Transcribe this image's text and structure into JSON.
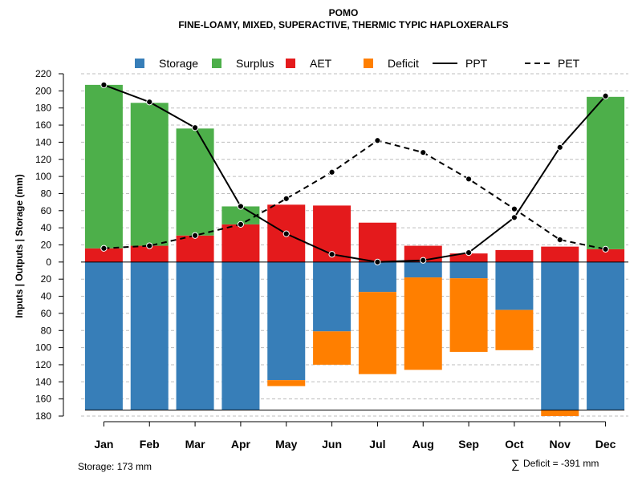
{
  "chart_data": {
    "type": "bar",
    "title": "POMO",
    "subtitle": "FINE-LOAMY, MIXED, SUPERACTIVE, THERMIC TYPIC HAPLOXERALFS",
    "ylabel": "Inputs | Outputs | Storage    (mm)",
    "xlabel": "",
    "ylim": [
      -180,
      220
    ],
    "y_ticks": [
      220,
      200,
      180,
      160,
      140,
      120,
      100,
      80,
      60,
      40,
      20,
      0,
      -20,
      -40,
      -60,
      -80,
      -100,
      -120,
      -140,
      -160,
      -180
    ],
    "y_tick_labels": [
      "220",
      "200",
      "180",
      "160",
      "140",
      "120",
      "100",
      "80",
      "60",
      "40",
      "20",
      "0",
      "20",
      "40",
      "60",
      "80",
      "100",
      "120",
      "140",
      "160",
      "180"
    ],
    "grid": true,
    "categories": [
      "Jan",
      "Feb",
      "Mar",
      "Apr",
      "May",
      "Jun",
      "Jul",
      "Aug",
      "Sep",
      "Oct",
      "Nov",
      "Dec"
    ],
    "legend": [
      {
        "label": "Storage",
        "type": "box",
        "color": "#377eb8"
      },
      {
        "label": "Surplus",
        "type": "box",
        "color": "#4daf4a"
      },
      {
        "label": "AET",
        "type": "box",
        "color": "#e41a1c"
      },
      {
        "label": "Deficit",
        "type": "box",
        "color": "#ff7f00"
      },
      {
        "label": "PPT",
        "type": "solid-line",
        "color": "#000000"
      },
      {
        "label": "PET",
        "type": "dashed-line",
        "color": "#000000"
      }
    ],
    "series": [
      {
        "name": "AET",
        "color": "#e41a1c",
        "values": [
          16,
          19,
          31,
          44,
          67,
          66,
          46,
          19,
          10,
          14,
          18,
          15
        ]
      },
      {
        "name": "Surplus",
        "color": "#4daf4a",
        "values": [
          191,
          167,
          125,
          21,
          0,
          0,
          0,
          0,
          0,
          0,
          0,
          178
        ]
      },
      {
        "name": "Storage",
        "color": "#377eb8",
        "values": [
          173,
          173,
          173,
          173,
          138,
          81,
          35,
          18,
          19,
          56,
          173,
          173
        ]
      },
      {
        "name": "Deficit",
        "color": "#ff7f00",
        "values": [
          0,
          0,
          0,
          0,
          7,
          39,
          96,
          108,
          86,
          47,
          7,
          0
        ]
      },
      {
        "name": "PPT",
        "color": "#000000",
        "line": "solid",
        "values": [
          207,
          187,
          157,
          65,
          33,
          9,
          0,
          2,
          11,
          52,
          134,
          194
        ]
      },
      {
        "name": "PET",
        "color": "#000000",
        "line": "dashed",
        "values": [
          16,
          19,
          31,
          44,
          74,
          105,
          142,
          128,
          97,
          62,
          26,
          15
        ]
      }
    ],
    "storage_capacity": 173,
    "annotations": {
      "storage": "Storage: 173 mm",
      "deficit_symbol": "∑",
      "deficit": "Deficit = -391 mm"
    }
  }
}
